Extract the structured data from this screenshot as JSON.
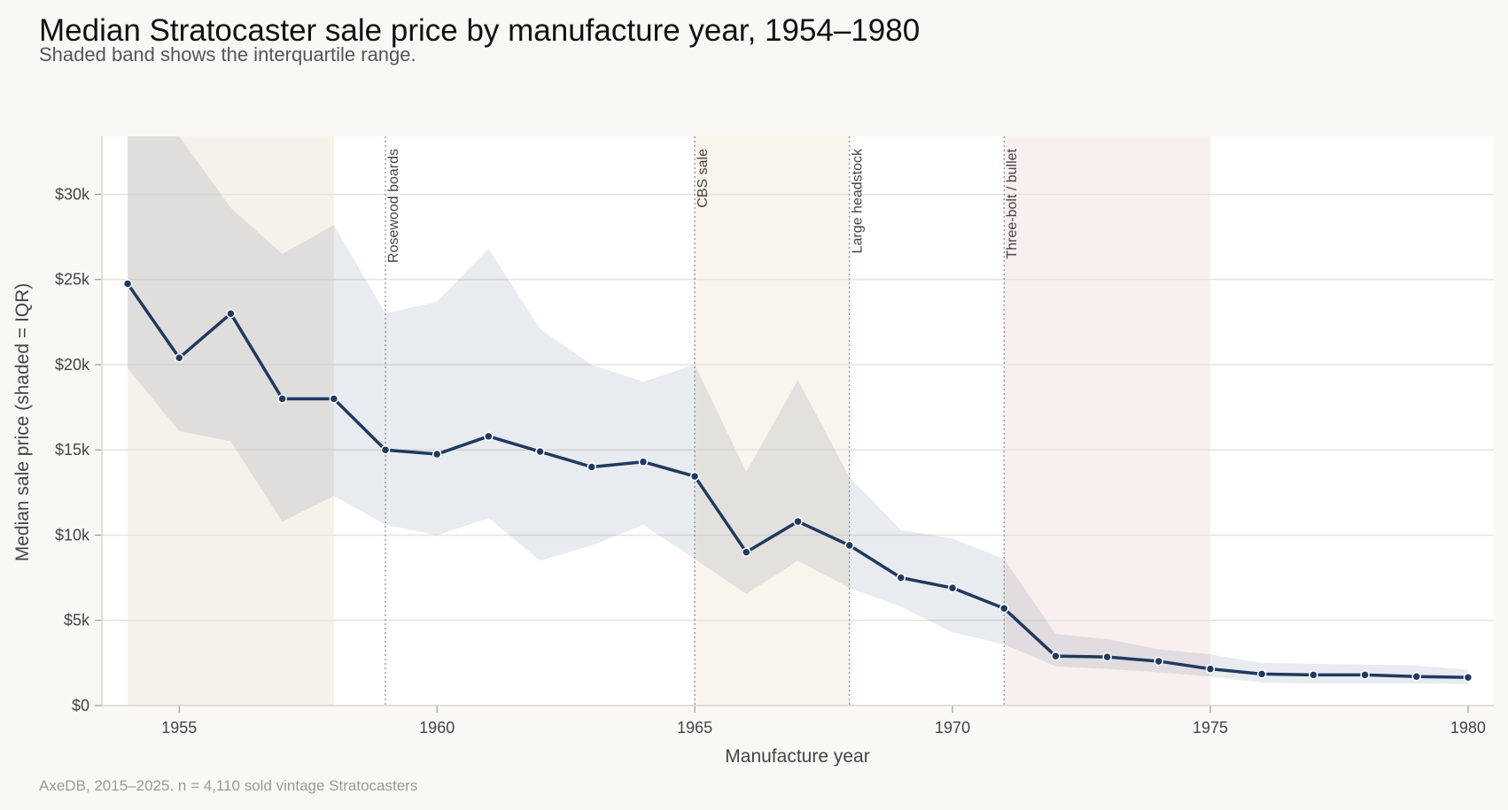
{
  "chart_data": {
    "type": "line",
    "title": "Median Stratocaster sale price by manufacture year, 1954–1980",
    "subtitle": "Shaded band shows the interquartile range.",
    "xlabel": "Manufacture year",
    "ylabel": "Median sale price (shaded = IQR)",
    "footnote": "AxeDB, 2015–2025. n = 4,110 sold vintage Stratocasters",
    "xlim": [
      1953.5,
      1980.5
    ],
    "ylim": [
      0,
      33400
    ],
    "x_ticks": [
      1955,
      1960,
      1965,
      1970,
      1975,
      1980
    ],
    "x_tick_labels": [
      "1955",
      "1960",
      "1965",
      "1970",
      "1975",
      "1980"
    ],
    "y_ticks": [
      0,
      5000,
      10000,
      15000,
      20000,
      25000,
      30000
    ],
    "y_tick_labels": [
      "$0",
      "$5k",
      "$10k",
      "$15k",
      "$20k",
      "$25k",
      "$30k"
    ],
    "grid": "horizontal",
    "x": [
      1954,
      1955,
      1956,
      1957,
      1958,
      1959,
      1960,
      1961,
      1962,
      1963,
      1964,
      1965,
      1966,
      1967,
      1968,
      1969,
      1970,
      1971,
      1972,
      1973,
      1974,
      1975,
      1976,
      1977,
      1978,
      1979,
      1980
    ],
    "median": [
      24750,
      20400,
      23000,
      18000,
      18000,
      15000,
      14750,
      15800,
      14900,
      14000,
      14300,
      13450,
      9000,
      10800,
      9400,
      7500,
      6900,
      5700,
      2900,
      2850,
      2600,
      2150,
      1850,
      1800,
      1800,
      1700,
      1650
    ],
    "q3": [
      35000,
      33500,
      29200,
      26500,
      28200,
      23000,
      23700,
      26800,
      22100,
      20000,
      19000,
      20000,
      13700,
      19100,
      13400,
      10300,
      9800,
      8600,
      4200,
      3900,
      3300,
      3000,
      2500,
      2450,
      2400,
      2350,
      2100
    ],
    "q1": [
      19800,
      16100,
      15500,
      10800,
      12300,
      10600,
      10000,
      11000,
      8500,
      9400,
      10600,
      8600,
      6550,
      8500,
      6900,
      5800,
      4300,
      3600,
      2300,
      2150,
      1950,
      1700,
      1350,
      1300,
      1300,
      1300,
      1250
    ],
    "line_color": "#1f3a5f",
    "band_color": "#1f3a5f",
    "eras": [
      {
        "start": 1954,
        "end": 1958,
        "color": "#f5f1eb"
      },
      {
        "start": 1965,
        "end": 1968,
        "color": "#f9f4ec"
      },
      {
        "start": 1971,
        "end": 1975,
        "color": "#f8efee"
      }
    ],
    "events": [
      {
        "year": 1959,
        "label": "Rosewood boards"
      },
      {
        "year": 1965,
        "label": "CBS sale"
      },
      {
        "year": 1968,
        "label": "Large headstock"
      },
      {
        "year": 1971,
        "label": "Three-bolt / bullet"
      }
    ]
  }
}
